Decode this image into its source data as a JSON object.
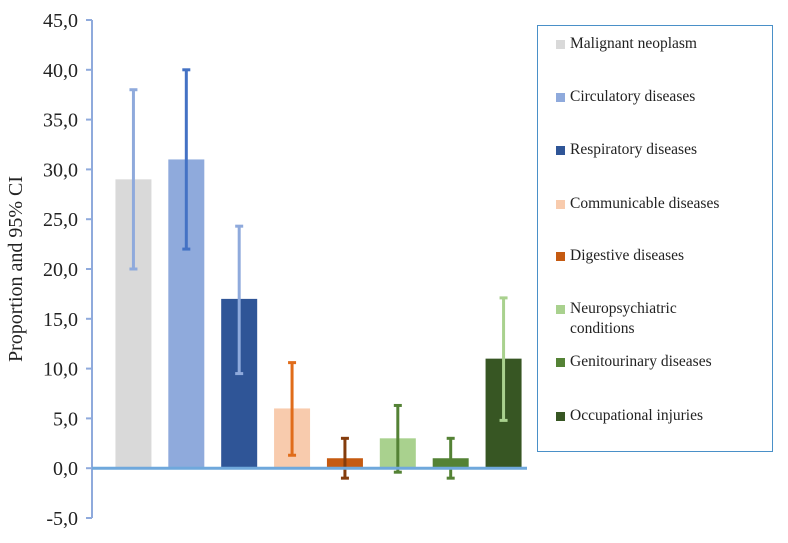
{
  "chart_data": {
    "type": "bar",
    "title": "",
    "xlabel": "",
    "ylabel": "Proportion and 95% CI",
    "ylim": [
      -5,
      45
    ],
    "yticks": [
      -5,
      0,
      5,
      10,
      15,
      20,
      25,
      30,
      35,
      40,
      45
    ],
    "ytick_labels": [
      "-5,0",
      "0,0",
      "5,0",
      "10,0",
      "15,0",
      "20,0",
      "25,0",
      "30,0",
      "35,0",
      "40,0",
      "45,0"
    ],
    "categories": [
      "Malignant neoplasm",
      "Circulatory diseases",
      "Respiratory diseases",
      "Communicable diseases",
      "Digestive diseases",
      "Neuropsychiatric conditions",
      "Genitourinary diseases",
      "Occupational injuries"
    ],
    "values": [
      29.0,
      31.0,
      17.0,
      6.0,
      1.0,
      3.0,
      1.0,
      11.0
    ],
    "ci_lower": [
      20.0,
      22.0,
      9.5,
      1.3,
      -1.0,
      -0.4,
      -1.0,
      4.8
    ],
    "ci_upper": [
      38.0,
      40.0,
      24.3,
      10.6,
      3.0,
      6.3,
      3.0,
      17.1
    ],
    "colors": [
      "#d9d9d9",
      "#8faadc",
      "#2f5597",
      "#f8cbad",
      "#c55a11",
      "#a9d18e",
      "#548235",
      "#375623"
    ],
    "error_colors": [
      "#8faadc",
      "#4472c4",
      "#8faadc",
      "#e06c1a",
      "#843c0c",
      "#548235",
      "#548235",
      "#a9d18e"
    ],
    "legend_position": "right"
  }
}
